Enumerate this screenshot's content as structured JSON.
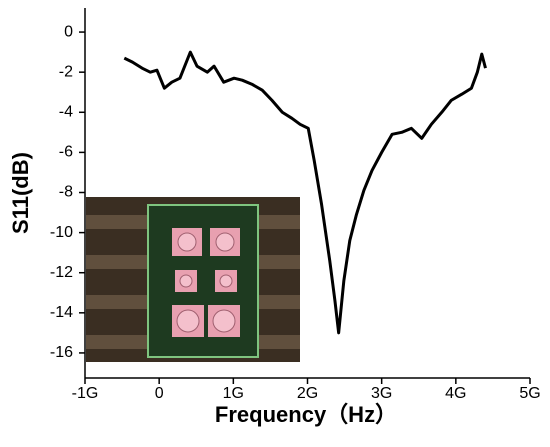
{
  "chart_data": {
    "type": "line",
    "x_label": "Frequency（Hz）",
    "y_label": "S11(dB)",
    "x": [
      -0.47,
      -0.36,
      -0.23,
      -0.12,
      -0.03,
      0.07,
      0.17,
      0.28,
      0.42,
      0.51,
      0.65,
      0.74,
      0.87,
      1.01,
      1.12,
      1.25,
      1.39,
      1.52,
      1.66,
      1.79,
      1.9,
      2.01,
      2.09,
      2.19,
      2.3,
      2.37,
      2.42,
      2.49,
      2.57,
      2.66,
      2.76,
      2.87,
      3.0,
      3.14,
      3.27,
      3.4,
      3.54,
      3.67,
      3.81,
      3.94,
      4.08,
      4.21,
      4.29,
      4.35,
      4.4
    ],
    "series": [
      {
        "color": "#000000",
        "values": [
          -1.3,
          -1.5,
          -1.8,
          -2.0,
          -1.9,
          -2.8,
          -2.5,
          -2.3,
          -1.0,
          -1.7,
          -2.0,
          -1.7,
          -2.5,
          -2.3,
          -2.4,
          -2.6,
          -2.9,
          -3.4,
          -4.0,
          -4.3,
          -4.6,
          -4.8,
          -6.4,
          -8.6,
          -11.4,
          -13.4,
          -15.0,
          -12.4,
          -10.4,
          -9.1,
          -7.9,
          -6.9,
          -6.0,
          -5.1,
          -5.0,
          -4.8,
          -5.3,
          -4.6,
          -4.0,
          -3.4,
          -3.1,
          -2.8,
          -2.0,
          -1.1,
          -1.8
        ]
      }
    ],
    "xlim": [
      -1,
      5
    ],
    "xticks": [
      {
        "value": -1,
        "label": "-1G"
      },
      0,
      {
        "value": 1,
        "label": "1G"
      },
      {
        "value": 2,
        "label": "2G"
      },
      {
        "value": 3,
        "label": "3G"
      },
      {
        "value": 4,
        "label": "4G"
      },
      {
        "value": 5,
        "label": "5G"
      }
    ],
    "ylim": [
      -17.25,
      1.2
    ],
    "yticks": [
      0,
      -2,
      -4,
      -6,
      -8,
      -10,
      -12,
      -14,
      -16
    ],
    "grid": false
  }
}
